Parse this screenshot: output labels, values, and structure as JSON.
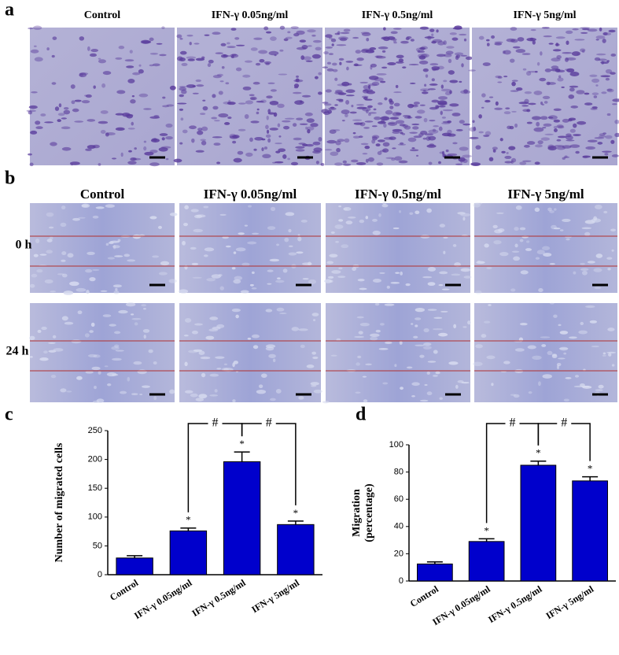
{
  "panel_a": {
    "label": "a",
    "headers": [
      "Control",
      "IFN-γ 0.05ng/ml",
      "IFN-γ 0.5ng/ml",
      "IFN-γ 5ng/ml"
    ]
  },
  "panel_b": {
    "label": "b",
    "headers": [
      "Control",
      "IFN-γ 0.05ng/ml",
      "IFN-γ 0.5ng/ml",
      "IFN-γ 5ng/ml"
    ],
    "rows": [
      "0 h",
      "24 h"
    ]
  },
  "chart_data": [
    {
      "type": "bar",
      "panel_label": "c",
      "y_label": [
        "Number of migrated cells"
      ],
      "categories": [
        "Control",
        "IFN-γ 0.05ng/ml",
        "IFN-γ 0.5ng/ml",
        "IFN-γ 5ng/ml"
      ],
      "values": [
        29,
        76,
        196,
        87
      ],
      "errors": [
        4,
        5,
        17,
        6
      ],
      "color": "#0000cc",
      "ylim": [
        0,
        250
      ],
      "yticks": [
        0,
        50,
        100,
        150,
        200,
        250
      ],
      "annotations": [
        {
          "text": "*",
          "category": 1
        },
        {
          "text": "*",
          "category": 2
        },
        {
          "text": "*",
          "category": 3
        }
      ],
      "comparisons": [
        {
          "text": "#",
          "from": 1,
          "to": 2
        },
        {
          "text": "#",
          "from": 2,
          "to": 3
        }
      ]
    },
    {
      "type": "bar",
      "panel_label": "d",
      "y_label": [
        "Migration",
        "(percentage)"
      ],
      "categories": [
        "Control",
        "IFN-γ 0.05ng/ml",
        "IFN-γ 0.5ng/ml",
        "IFN-γ 5ng/ml"
      ],
      "values": [
        12.5,
        29,
        85,
        73.5
      ],
      "errors": [
        1.5,
        2,
        3,
        3
      ],
      "color": "#0000cc",
      "ylim": [
        0,
        100
      ],
      "yticks": [
        0,
        20,
        40,
        60,
        80,
        100
      ],
      "annotations": [
        {
          "text": "*",
          "category": 1
        },
        {
          "text": "*",
          "category": 2
        },
        {
          "text": "*",
          "category": 3
        }
      ],
      "comparisons": [
        {
          "text": "#",
          "from": 1,
          "to": 2
        },
        {
          "text": "#",
          "from": 2,
          "to": 3
        }
      ]
    }
  ]
}
